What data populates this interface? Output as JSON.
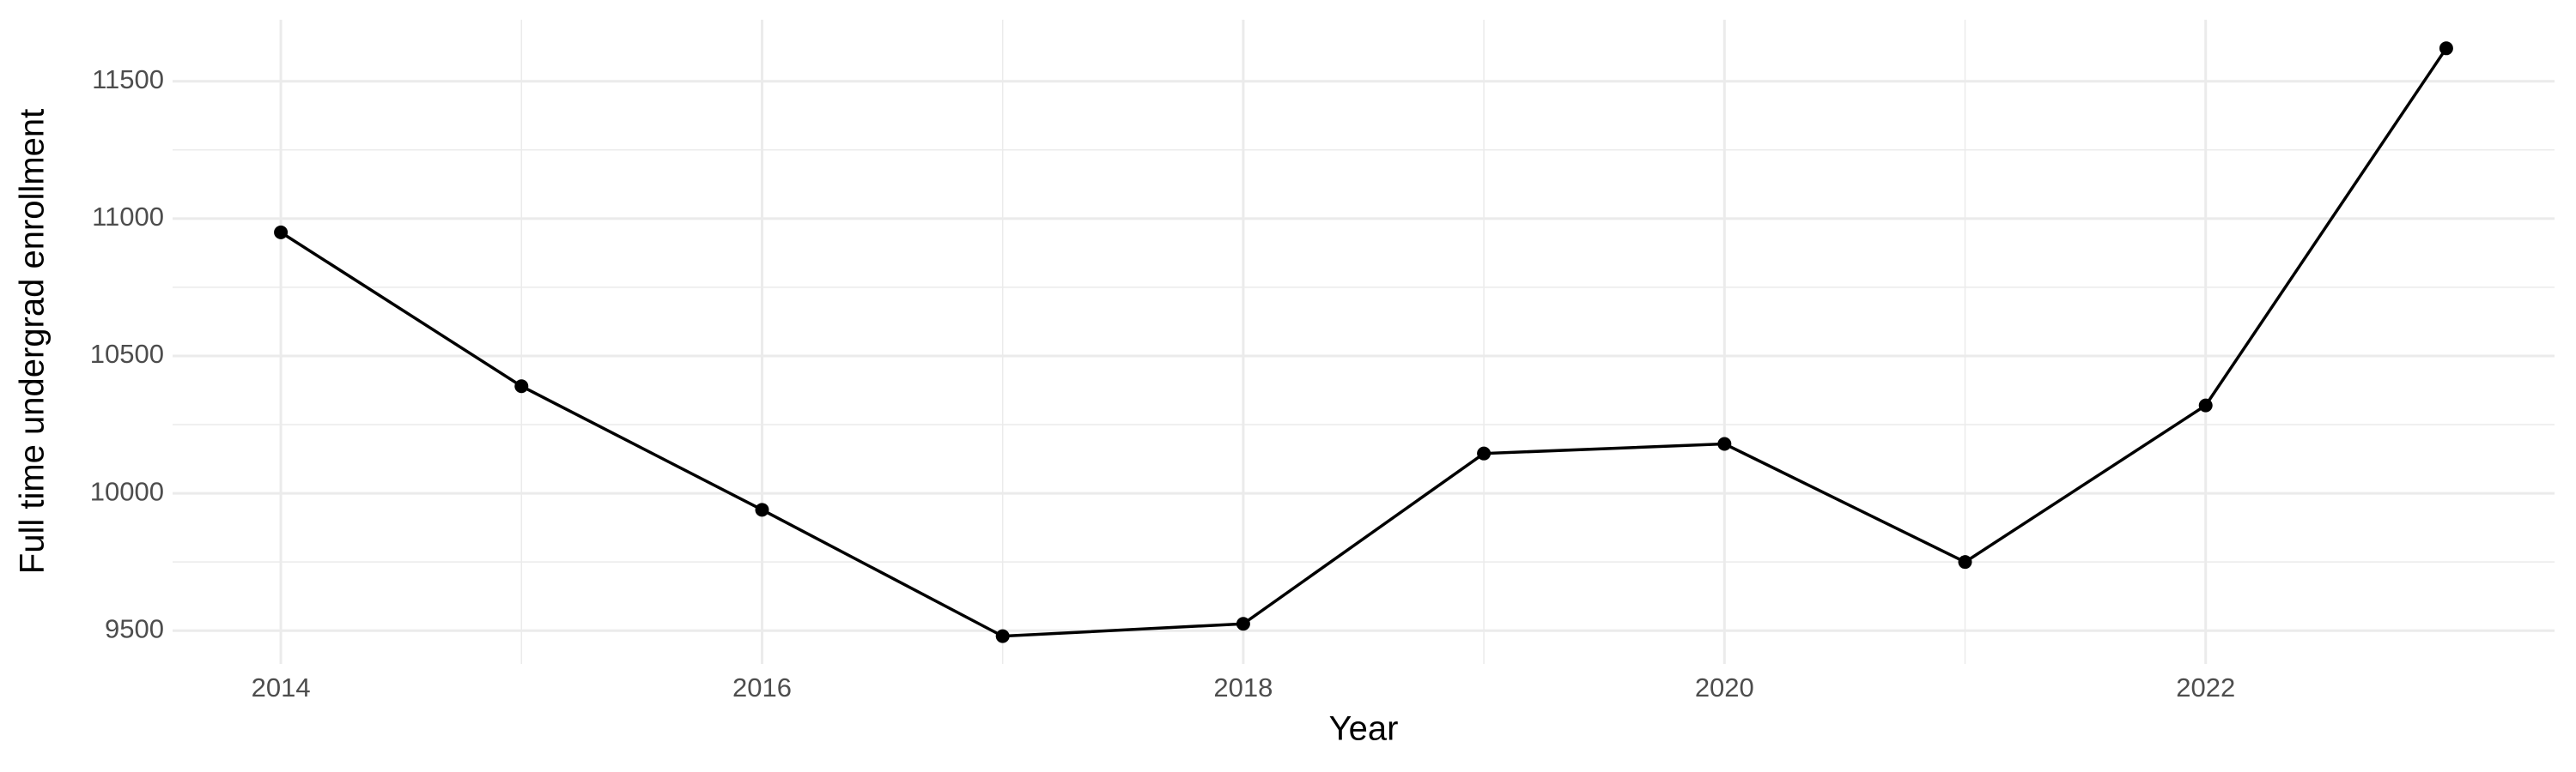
{
  "chart_data": {
    "type": "line",
    "x_label": "Year",
    "y_label": "Full time undergrad enrollment",
    "x": [
      2014,
      2015,
      2016,
      2017,
      2018,
      2019,
      2020,
      2021,
      2022,
      2023
    ],
    "series": [
      {
        "color": "#000000",
        "values": [
          10950,
          10390,
          9940,
          9480,
          9525,
          10145,
          10180,
          9750,
          10320,
          11620
        ]
      }
    ],
    "xlim": [
      2013.55,
      2023.45
    ],
    "xticks": [
      2014,
      2016,
      2018,
      2020,
      2022
    ],
    "ylim": [
      9379,
      11724
    ],
    "yticks": [
      9500,
      10000,
      10500,
      11000,
      11500
    ],
    "grid": true,
    "minor_grid": true
  }
}
